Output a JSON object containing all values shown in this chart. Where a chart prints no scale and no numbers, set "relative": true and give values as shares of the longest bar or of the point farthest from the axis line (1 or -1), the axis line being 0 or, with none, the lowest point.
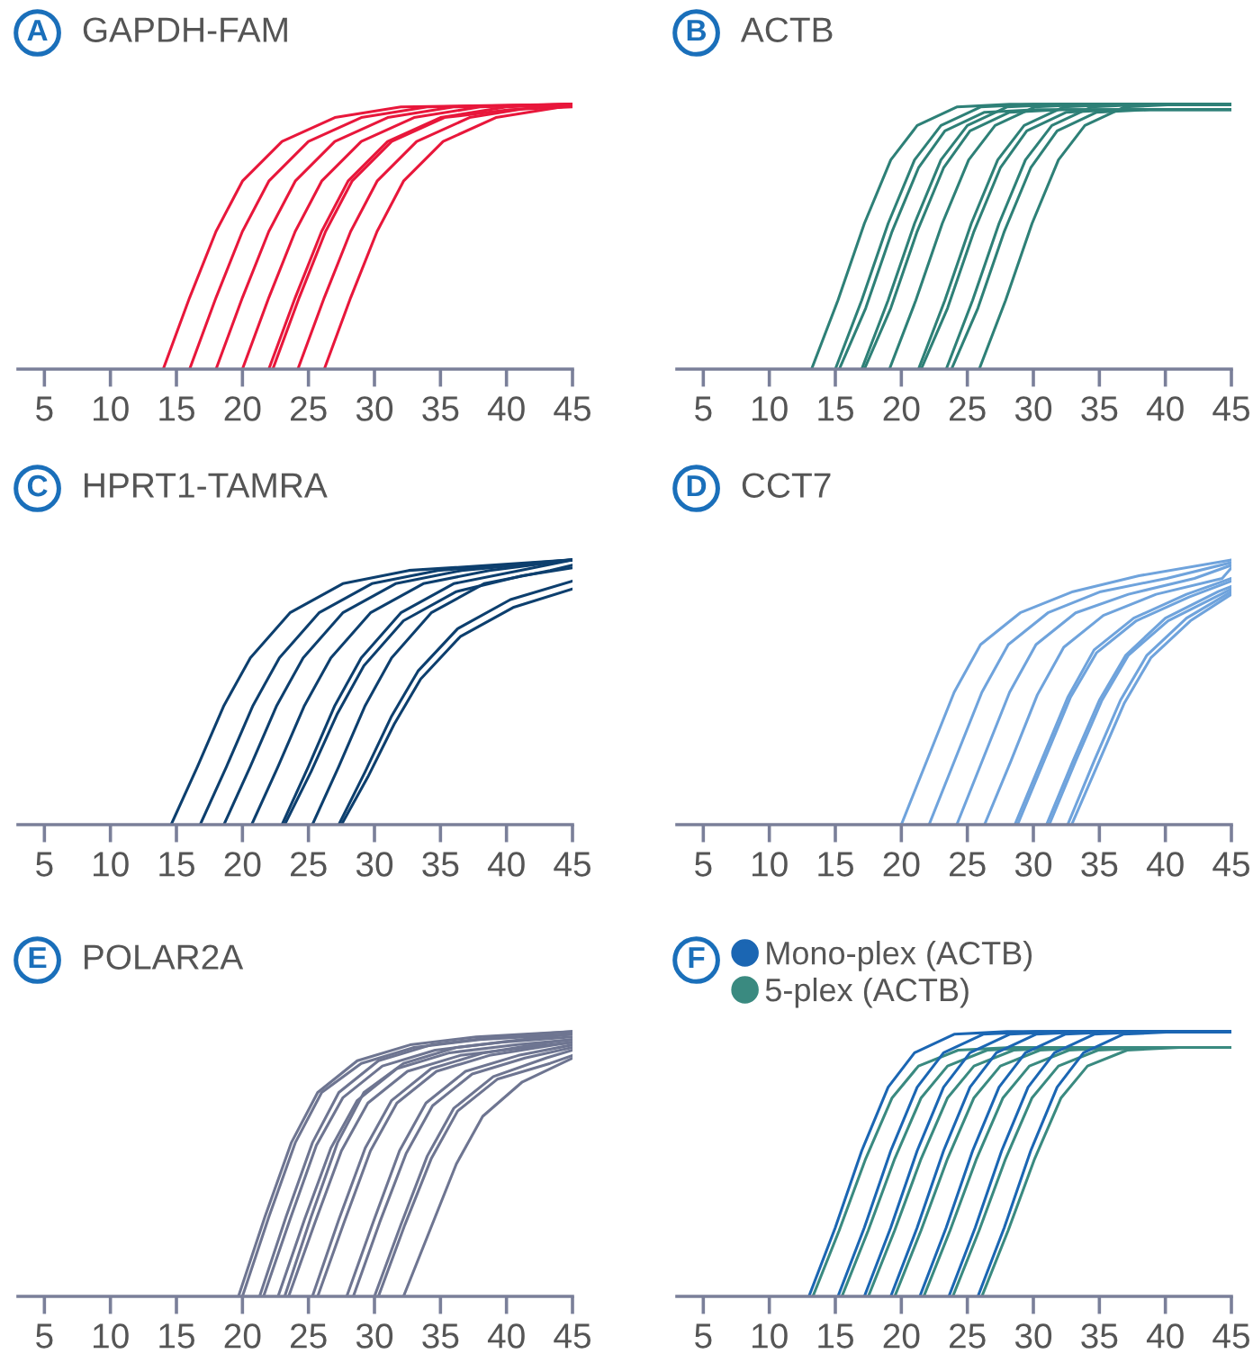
{
  "chart_data": [
    {
      "type": "line",
      "title": "GAPDH-FAM",
      "annotations": [
        "A"
      ],
      "relative": true,
      "xlim": [
        3,
        45
      ],
      "xticks": [
        5,
        10,
        15,
        20,
        25,
        30,
        35,
        40,
        45
      ],
      "grid": false,
      "legend": false,
      "tick_labels": "x",
      "line_style": "solid",
      "series": [
        {
          "color": "#e8173b",
          "x": [
            14,
            16,
            18,
            20,
            23,
            27,
            32,
            45
          ],
          "values": [
            0,
            0.27,
            0.52,
            0.71,
            0.86,
            0.95,
            0.99,
            1.0
          ]
        },
        {
          "color": "#e8173b",
          "x": [
            16,
            18,
            20,
            22,
            25,
            29,
            34,
            45
          ],
          "values": [
            0,
            0.27,
            0.52,
            0.71,
            0.86,
            0.95,
            0.99,
            1.0
          ]
        },
        {
          "color": "#e8173b",
          "x": [
            18,
            20,
            22,
            24,
            27,
            31,
            36,
            45
          ],
          "values": [
            0,
            0.27,
            0.52,
            0.71,
            0.86,
            0.95,
            0.99,
            1.0
          ]
        },
        {
          "color": "#e8173b",
          "x": [
            20,
            22,
            24,
            26,
            29,
            33,
            38,
            45
          ],
          "values": [
            0,
            0.27,
            0.52,
            0.71,
            0.86,
            0.95,
            0.99,
            1.0
          ]
        },
        {
          "color": "#e8173b",
          "x": [
            22,
            24,
            26,
            28,
            31,
            35,
            40,
            45
          ],
          "values": [
            0,
            0.27,
            0.52,
            0.71,
            0.86,
            0.95,
            0.99,
            1.0
          ]
        },
        {
          "color": "#e8173b",
          "x": [
            22.3,
            24.3,
            26.3,
            28.3,
            31.3,
            35.3,
            40.3,
            45
          ],
          "values": [
            0,
            0.27,
            0.52,
            0.71,
            0.86,
            0.95,
            0.98,
            0.99
          ]
        },
        {
          "color": "#e8173b",
          "x": [
            24.2,
            26.2,
            28.2,
            30.2,
            33.2,
            37.2,
            42.2,
            45
          ],
          "values": [
            0,
            0.27,
            0.52,
            0.71,
            0.86,
            0.95,
            0.99,
            1.0
          ]
        },
        {
          "color": "#e8173b",
          "x": [
            26.2,
            28.2,
            30.2,
            32.2,
            35.2,
            39.2,
            44.2,
            45
          ],
          "values": [
            0,
            0.27,
            0.52,
            0.71,
            0.86,
            0.95,
            0.99,
            1.0
          ]
        }
      ]
    },
    {
      "type": "line",
      "title": "ACTB",
      "annotations": [
        "B"
      ],
      "relative": true,
      "xlim": [
        3,
        45
      ],
      "xticks": [
        5,
        10,
        15,
        20,
        25,
        30,
        35,
        40,
        45
      ],
      "grid": false,
      "legend": false,
      "tick_labels": "x",
      "line_style": "solid",
      "series": [
        {
          "color": "#2e8077",
          "x": [
            13.2,
            15.2,
            17.2,
            19.2,
            21.2,
            24.2,
            28.2,
            45
          ],
          "values": [
            0,
            0.26,
            0.55,
            0.79,
            0.92,
            0.99,
            1.0,
            1.0
          ]
        },
        {
          "color": "#2e8077",
          "x": [
            15,
            17,
            19,
            21,
            23,
            26,
            30,
            45
          ],
          "values": [
            0,
            0.26,
            0.55,
            0.79,
            0.92,
            0.99,
            1.0,
            1.0
          ]
        },
        {
          "color": "#2e8077",
          "x": [
            15.3,
            17.3,
            19.3,
            21.3,
            23.3,
            26.3,
            30.3,
            45
          ],
          "values": [
            0,
            0.23,
            0.52,
            0.76,
            0.9,
            0.97,
            0.98,
            0.98
          ]
        },
        {
          "color": "#2e8077",
          "x": [
            17,
            19,
            21,
            23,
            25,
            28,
            32,
            45
          ],
          "values": [
            0,
            0.26,
            0.55,
            0.79,
            0.92,
            0.99,
            1.0,
            1.0
          ]
        },
        {
          "color": "#2e8077",
          "x": [
            17.2,
            19.2,
            21.2,
            23.2,
            25.2,
            28.2,
            32.2,
            45
          ],
          "values": [
            0,
            0.23,
            0.52,
            0.76,
            0.9,
            0.97,
            0.98,
            0.98
          ]
        },
        {
          "color": "#2e8077",
          "x": [
            19.1,
            21.1,
            23.1,
            25.1,
            27.1,
            30.1,
            34.1,
            45
          ],
          "values": [
            0,
            0.26,
            0.55,
            0.79,
            0.92,
            0.99,
            1.0,
            1.0
          ]
        },
        {
          "color": "#2e8077",
          "x": [
            21.3,
            23.3,
            25.3,
            27.3,
            29.3,
            32.3,
            36.3,
            45
          ],
          "values": [
            0,
            0.26,
            0.55,
            0.79,
            0.92,
            0.99,
            1.0,
            1.0
          ]
        },
        {
          "color": "#2e8077",
          "x": [
            21.5,
            23.5,
            25.5,
            27.5,
            29.5,
            32.5,
            36.5,
            45
          ],
          "values": [
            0,
            0.23,
            0.52,
            0.76,
            0.9,
            0.97,
            0.98,
            0.98
          ]
        },
        {
          "color": "#2e8077",
          "x": [
            23.4,
            25.4,
            27.4,
            29.4,
            31.4,
            34.4,
            38.4,
            45
          ],
          "values": [
            0,
            0.26,
            0.55,
            0.79,
            0.92,
            0.99,
            1.0,
            1.0
          ]
        },
        {
          "color": "#2e8077",
          "x": [
            23.8,
            25.8,
            27.8,
            29.8,
            31.8,
            34.8,
            38.8,
            45
          ],
          "values": [
            0,
            0.23,
            0.52,
            0.76,
            0.9,
            0.97,
            0.98,
            0.98
          ]
        },
        {
          "color": "#2e8077",
          "x": [
            25.9,
            27.9,
            29.9,
            31.9,
            33.9,
            36.9,
            40.9,
            45
          ],
          "values": [
            0,
            0.26,
            0.55,
            0.79,
            0.92,
            0.99,
            1.0,
            1.0
          ]
        }
      ]
    },
    {
      "type": "line",
      "title": "HPRT1-TAMRA",
      "annotations": [
        "C"
      ],
      "relative": true,
      "xlim": [
        3,
        45
      ],
      "xticks": [
        5,
        10,
        15,
        20,
        25,
        30,
        35,
        40,
        45
      ],
      "grid": false,
      "legend": false,
      "tick_labels": "x",
      "line_style": "solid",
      "series": [
        {
          "color": "#0d3f6e",
          "x": [
            14.6,
            16.6,
            18.6,
            20.6,
            23.6,
            27.6,
            32.6,
            45
          ],
          "values": [
            0,
            0.22,
            0.45,
            0.63,
            0.8,
            0.91,
            0.96,
            1.0
          ]
        },
        {
          "color": "#0d3f6e",
          "x": [
            16.8,
            18.8,
            20.8,
            22.8,
            25.8,
            29.8,
            34.8,
            45
          ],
          "values": [
            0,
            0.22,
            0.45,
            0.63,
            0.8,
            0.91,
            0.96,
            1.0
          ]
        },
        {
          "color": "#0d3f6e",
          "x": [
            18.6,
            20.6,
            22.6,
            24.6,
            27.6,
            31.6,
            36.6,
            45
          ],
          "values": [
            0,
            0.22,
            0.45,
            0.63,
            0.8,
            0.91,
            0.96,
            1.0
          ]
        },
        {
          "color": "#0d3f6e",
          "x": [
            20.7,
            22.7,
            24.7,
            26.7,
            29.7,
            33.7,
            38.7,
            45
          ],
          "values": [
            0,
            0.22,
            0.45,
            0.63,
            0.8,
            0.91,
            0.96,
            1.0
          ]
        },
        {
          "color": "#0d3f6e",
          "x": [
            23,
            25,
            27,
            29,
            32,
            36,
            41,
            45
          ],
          "values": [
            0,
            0.22,
            0.45,
            0.63,
            0.8,
            0.91,
            0.96,
            1.0
          ]
        },
        {
          "color": "#0d3f6e",
          "x": [
            23.2,
            25.2,
            27.2,
            29.2,
            32.2,
            36.2,
            41.2,
            45
          ],
          "values": [
            0,
            0.2,
            0.42,
            0.6,
            0.77,
            0.88,
            0.94,
            0.97
          ]
        },
        {
          "color": "#0d3f6e",
          "x": [
            25.3,
            27.3,
            29.3,
            31.3,
            34.3,
            38.3,
            43.3,
            45
          ],
          "values": [
            0,
            0.22,
            0.45,
            0.63,
            0.8,
            0.91,
            0.96,
            0.98
          ]
        },
        {
          "color": "#0d3f6e",
          "x": [
            27.3,
            29.3,
            31.3,
            33.3,
            36.3,
            40.3,
            45
          ],
          "values": [
            0,
            0.2,
            0.41,
            0.58,
            0.74,
            0.85,
            0.92
          ]
        },
        {
          "color": "#0d3f6e",
          "x": [
            27.5,
            29.5,
            31.5,
            33.5,
            36.5,
            40.5,
            45
          ],
          "values": [
            0,
            0.18,
            0.38,
            0.55,
            0.71,
            0.82,
            0.89
          ]
        }
      ]
    },
    {
      "type": "line",
      "title": "CCT7",
      "annotations": [
        "D"
      ],
      "relative": true,
      "xlim": [
        3,
        45
      ],
      "xticks": [
        5,
        10,
        15,
        20,
        25,
        30,
        35,
        40,
        45
      ],
      "grid": false,
      "legend": false,
      "tick_labels": "x",
      "line_style": "solid",
      "series": [
        {
          "color": "#6fa3dc",
          "x": [
            20,
            22,
            24,
            26,
            29,
            33,
            38,
            45
          ],
          "values": [
            0,
            0.25,
            0.5,
            0.68,
            0.8,
            0.88,
            0.94,
            1.0
          ]
        },
        {
          "color": "#6fa3dc",
          "x": [
            22.1,
            24.1,
            26.1,
            28.1,
            31.1,
            35.1,
            40.1,
            45
          ],
          "values": [
            0,
            0.25,
            0.5,
            0.68,
            0.8,
            0.88,
            0.93,
            0.99
          ]
        },
        {
          "color": "#6fa3dc",
          "x": [
            24.2,
            26.2,
            28.2,
            30.2,
            33.2,
            37.2,
            42.2,
            45
          ],
          "values": [
            0,
            0.25,
            0.5,
            0.68,
            0.8,
            0.87,
            0.93,
            0.98
          ]
        },
        {
          "color": "#6fa3dc",
          "x": [
            26.3,
            28.3,
            30.3,
            32.3,
            35.3,
            39.3,
            44.3,
            45
          ],
          "values": [
            0,
            0.24,
            0.49,
            0.67,
            0.79,
            0.87,
            0.93,
            0.97
          ]
        },
        {
          "color": "#6fa3dc",
          "x": [
            28.6,
            30.6,
            32.6,
            34.6,
            37.6,
            41.6,
            45
          ],
          "values": [
            0,
            0.24,
            0.48,
            0.66,
            0.78,
            0.87,
            0.93
          ]
        },
        {
          "color": "#6fa3dc",
          "x": [
            28.8,
            30.8,
            32.8,
            34.8,
            37.8,
            41.8,
            45
          ],
          "values": [
            0,
            0.24,
            0.48,
            0.65,
            0.77,
            0.86,
            0.92
          ]
        },
        {
          "color": "#6fa3dc",
          "x": [
            31,
            33,
            35,
            37,
            40,
            44,
            45
          ],
          "values": [
            0,
            0.24,
            0.47,
            0.64,
            0.78,
            0.88,
            0.9
          ]
        },
        {
          "color": "#6fa3dc",
          "x": [
            31.2,
            33.2,
            35.2,
            37.2,
            40.2,
            44.2,
            45
          ],
          "values": [
            0,
            0.24,
            0.47,
            0.64,
            0.77,
            0.87,
            0.89
          ]
        },
        {
          "color": "#6fa3dc",
          "x": [
            32.6,
            34.6,
            36.6,
            38.6,
            41.6,
            45
          ],
          "values": [
            0,
            0.24,
            0.47,
            0.64,
            0.78,
            0.88
          ]
        },
        {
          "color": "#6fa3dc",
          "x": [
            32.9,
            34.9,
            36.9,
            38.9,
            41.9,
            45
          ],
          "values": [
            0,
            0.23,
            0.46,
            0.63,
            0.77,
            0.87
          ]
        }
      ]
    },
    {
      "type": "line",
      "title": "POLAR2A",
      "annotations": [
        "E"
      ],
      "relative": true,
      "xlim": [
        3,
        45
      ],
      "xticks": [
        5,
        10,
        15,
        20,
        25,
        30,
        35,
        40,
        45
      ],
      "grid": false,
      "legend": false,
      "tick_labels": "x",
      "line_style": "solid",
      "series": [
        {
          "color": "#6e7591",
          "x": [
            19.7,
            21.7,
            23.7,
            25.7,
            28.7,
            32.7,
            37.7,
            45
          ],
          "values": [
            0,
            0.3,
            0.58,
            0.77,
            0.89,
            0.95,
            0.98,
            1.0
          ]
        },
        {
          "color": "#6e7591",
          "x": [
            20,
            22,
            24,
            26,
            29,
            33,
            38,
            45
          ],
          "values": [
            0,
            0.3,
            0.58,
            0.77,
            0.88,
            0.94,
            0.97,
            0.99
          ]
        },
        {
          "color": "#6e7591",
          "x": [
            21.3,
            23.3,
            25.3,
            27.3,
            30.3,
            34.3,
            39.3,
            45
          ],
          "values": [
            0,
            0.3,
            0.58,
            0.77,
            0.89,
            0.95,
            0.98,
            1.0
          ]
        },
        {
          "color": "#6e7591",
          "x": [
            21.6,
            23.6,
            25.6,
            27.6,
            30.6,
            34.6,
            39.6,
            45
          ],
          "values": [
            0,
            0.29,
            0.57,
            0.75,
            0.87,
            0.93,
            0.96,
            0.98
          ]
        },
        {
          "color": "#6e7591",
          "x": [
            22.7,
            24.7,
            26.7,
            28.7,
            31.7,
            35.7,
            40.7,
            45
          ],
          "values": [
            0,
            0.29,
            0.56,
            0.74,
            0.86,
            0.92,
            0.95,
            0.97
          ]
        },
        {
          "color": "#6e7591",
          "x": [
            23.2,
            25.2,
            27.2,
            29.2,
            32.2,
            36.2,
            41.2,
            45
          ],
          "values": [
            0,
            0.3,
            0.58,
            0.77,
            0.88,
            0.94,
            0.97,
            0.99
          ]
        },
        {
          "color": "#6e7591",
          "x": [
            23.5,
            25.5,
            27.5,
            29.5,
            32.5,
            36.5,
            41.5,
            45
          ],
          "values": [
            0,
            0.28,
            0.55,
            0.73,
            0.85,
            0.91,
            0.94,
            0.96
          ]
        },
        {
          "color": "#6e7591",
          "x": [
            25.3,
            27.3,
            29.3,
            31.3,
            34.3,
            38.3,
            43.3,
            45
          ],
          "values": [
            0,
            0.29,
            0.56,
            0.74,
            0.86,
            0.92,
            0.96,
            0.97
          ]
        },
        {
          "color": "#6e7591",
          "x": [
            25.7,
            27.7,
            29.7,
            31.7,
            34.7,
            38.7,
            43.7,
            45
          ],
          "values": [
            0,
            0.28,
            0.55,
            0.73,
            0.85,
            0.91,
            0.95,
            0.96
          ]
        },
        {
          "color": "#6e7591",
          "x": [
            27.9,
            29.9,
            31.9,
            33.9,
            36.9,
            40.9,
            45
          ],
          "values": [
            0,
            0.28,
            0.55,
            0.73,
            0.85,
            0.91,
            0.95
          ]
        },
        {
          "color": "#6e7591",
          "x": [
            28.4,
            30.4,
            32.4,
            34.4,
            37.4,
            41.4,
            45
          ],
          "values": [
            0,
            0.28,
            0.54,
            0.72,
            0.84,
            0.9,
            0.94
          ]
        },
        {
          "color": "#6e7591",
          "x": [
            30,
            32,
            34,
            36,
            39,
            43,
            45
          ],
          "values": [
            0,
            0.27,
            0.53,
            0.71,
            0.83,
            0.9,
            0.93
          ]
        },
        {
          "color": "#6e7591",
          "x": [
            30.3,
            32.3,
            34.3,
            36.3,
            39.3,
            43.3,
            45
          ],
          "values": [
            0,
            0.27,
            0.52,
            0.7,
            0.82,
            0.88,
            0.91
          ]
        },
        {
          "color": "#6e7591",
          "x": [
            32.2,
            34.2,
            36.2,
            38.2,
            41.2,
            45
          ],
          "values": [
            0,
            0.25,
            0.5,
            0.68,
            0.81,
            0.9
          ]
        }
      ]
    },
    {
      "type": "line",
      "annotations": [
        "F"
      ],
      "relative": true,
      "xlim": [
        3,
        45
      ],
      "xticks": [
        5,
        10,
        15,
        20,
        25,
        30,
        35,
        40,
        45
      ],
      "grid": false,
      "legend": "top left",
      "tick_labels": "x",
      "line_style": "solid",
      "series": [
        {
          "name": "Mono-plex (ACTB)",
          "color": "#1b66b3",
          "x": [
            13,
            15,
            17,
            19,
            21,
            24,
            28,
            45
          ],
          "values": [
            0,
            0.26,
            0.55,
            0.79,
            0.92,
            0.99,
            1.0,
            1.0
          ]
        },
        {
          "name": "5-plex (ACTB)",
          "color": "#3a8a80",
          "x": [
            13.3,
            15.3,
            17.3,
            19.3,
            21.3,
            24.3,
            28.3,
            45
          ],
          "values": [
            0,
            0.25,
            0.52,
            0.75,
            0.87,
            0.93,
            0.94,
            0.94
          ]
        },
        {
          "color": "#1b66b3",
          "x": [
            15.2,
            17.2,
            19.2,
            21.2,
            23.2,
            26.2,
            30.2,
            45
          ],
          "values": [
            0,
            0.26,
            0.55,
            0.79,
            0.92,
            0.99,
            1.0,
            1.0
          ]
        },
        {
          "color": "#3a8a80",
          "x": [
            15.5,
            17.5,
            19.5,
            21.5,
            23.5,
            26.5,
            30.5,
            45
          ],
          "values": [
            0,
            0.25,
            0.52,
            0.75,
            0.87,
            0.93,
            0.94,
            0.94
          ]
        },
        {
          "color": "#1b66b3",
          "x": [
            17.2,
            19.2,
            21.2,
            23.2,
            25.2,
            28.2,
            32.2,
            45
          ],
          "values": [
            0,
            0.26,
            0.55,
            0.79,
            0.92,
            0.99,
            1.0,
            1.0
          ]
        },
        {
          "color": "#3a8a80",
          "x": [
            17.5,
            19.5,
            21.5,
            23.5,
            25.5,
            28.5,
            32.5,
            45
          ],
          "values": [
            0,
            0.25,
            0.52,
            0.75,
            0.87,
            0.93,
            0.94,
            0.94
          ]
        },
        {
          "color": "#1b66b3",
          "x": [
            19.2,
            21.2,
            23.2,
            25.2,
            27.2,
            30.2,
            34.2,
            45
          ],
          "values": [
            0,
            0.26,
            0.55,
            0.79,
            0.92,
            0.99,
            1.0,
            1.0
          ]
        },
        {
          "color": "#3a8a80",
          "x": [
            19.5,
            21.5,
            23.5,
            25.5,
            27.5,
            30.5,
            34.5,
            45
          ],
          "values": [
            0,
            0.25,
            0.52,
            0.75,
            0.87,
            0.93,
            0.94,
            0.94
          ]
        },
        {
          "color": "#1b66b3",
          "x": [
            21.4,
            23.4,
            25.4,
            27.4,
            29.4,
            32.4,
            36.4,
            45
          ],
          "values": [
            0,
            0.26,
            0.55,
            0.79,
            0.92,
            0.99,
            1.0,
            1.0
          ]
        },
        {
          "color": "#3a8a80",
          "x": [
            21.7,
            23.7,
            25.7,
            27.7,
            29.7,
            32.7,
            36.7,
            45
          ],
          "values": [
            0,
            0.25,
            0.52,
            0.75,
            0.87,
            0.93,
            0.94,
            0.94
          ]
        },
        {
          "color": "#1b66b3",
          "x": [
            23.6,
            25.6,
            27.6,
            29.6,
            31.6,
            34.6,
            38.6,
            45
          ],
          "values": [
            0,
            0.26,
            0.55,
            0.79,
            0.92,
            0.99,
            1.0,
            1.0
          ]
        },
        {
          "color": "#3a8a80",
          "x": [
            23.9,
            25.9,
            27.9,
            29.9,
            31.9,
            34.9,
            38.9,
            45
          ],
          "values": [
            0,
            0.25,
            0.52,
            0.75,
            0.87,
            0.93,
            0.94,
            0.94
          ]
        },
        {
          "color": "#1b66b3",
          "x": [
            25.8,
            27.8,
            29.8,
            31.8,
            33.8,
            36.8,
            40.8,
            45
          ],
          "values": [
            0,
            0.26,
            0.55,
            0.79,
            0.92,
            0.99,
            1.0,
            1.0
          ]
        },
        {
          "color": "#3a8a80",
          "x": [
            26.1,
            28.1,
            30.1,
            32.1,
            34.1,
            37.1,
            41.1,
            45
          ],
          "values": [
            0,
            0.25,
            0.52,
            0.75,
            0.87,
            0.93,
            0.94,
            0.94
          ]
        }
      ]
    }
  ]
}
